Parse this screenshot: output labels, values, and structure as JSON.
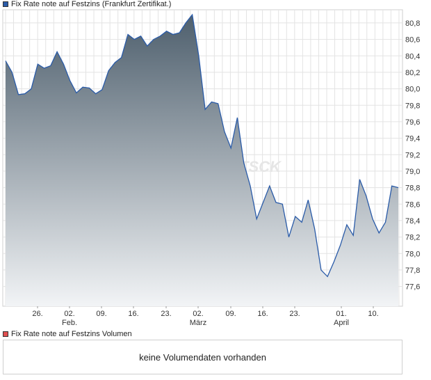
{
  "chart_data": {
    "type": "area",
    "title": "Fix Rate note auf Festzins (Frankfurt Zertifikat.)",
    "series_color": "#2a5ba8",
    "fill_top_color": "#4e5f6d",
    "fill_bottom_color": "#f2f4f6",
    "grid": true,
    "ylim": [
      77.36,
      80.96
    ],
    "yticks": [
      "80,8",
      "80,6",
      "80,4",
      "80,2",
      "80,0",
      "79,8",
      "79,6",
      "79,4",
      "79,2",
      "79,0",
      "78,8",
      "78,6",
      "78,4",
      "78,2",
      "78,0",
      "77,8",
      "77,6"
    ],
    "x_tick_labels": [
      "26.",
      "02.",
      "09.",
      "16.",
      "23.",
      "02.",
      "09.",
      "16.",
      "23.",
      "01.",
      "10."
    ],
    "x_month_labels": [
      {
        "label": "Feb.",
        "under": 1
      },
      {
        "label": "März",
        "under": 5
      },
      {
        "label": "April",
        "under": 9
      }
    ],
    "values": [
      80.34,
      80.2,
      79.93,
      79.94,
      80.0,
      80.3,
      80.25,
      80.28,
      80.45,
      80.3,
      80.1,
      79.95,
      80.02,
      80.01,
      79.94,
      79.99,
      80.22,
      80.32,
      80.38,
      80.66,
      80.6,
      80.64,
      80.52,
      80.6,
      80.64,
      80.7,
      80.66,
      80.68,
      80.8,
      80.9,
      80.4,
      79.75,
      79.84,
      79.82,
      79.48,
      79.28,
      79.65,
      79.1,
      78.82,
      78.42,
      78.62,
      78.82,
      78.62,
      78.6,
      78.2,
      78.45,
      78.38,
      78.65,
      78.3,
      77.8,
      77.72,
      77.9,
      78.1,
      78.35,
      78.22,
      78.9,
      78.7,
      78.42,
      78.25,
      78.38,
      78.82,
      78.8
    ],
    "watermark": "FACTSCK"
  },
  "volume": {
    "legend": "Fix Rate note auf Festzins Volumen",
    "message": "keine Volumendaten vorhanden",
    "swatch_color": "#e05050"
  },
  "legend_swatch_color": "#2a5ba8"
}
